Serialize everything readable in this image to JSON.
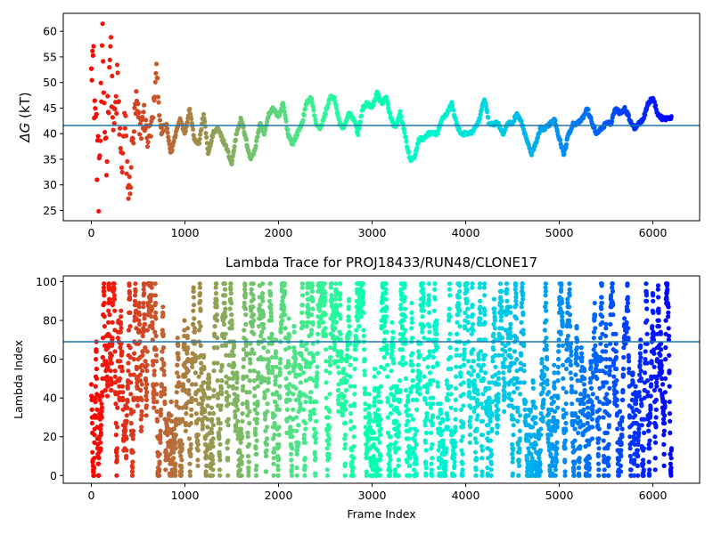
{
  "chart_data": [
    {
      "id": "free-energy",
      "type": "scatter",
      "title": "",
      "xlabel": "",
      "ylabel_main": "ΔG",
      "ylabel_unit": " (kT)",
      "xlim": [
        -300,
        6500
      ],
      "ylim": [
        23,
        63.5
      ],
      "xticks": [
        0,
        1000,
        2000,
        3000,
        4000,
        5000,
        6000
      ],
      "yticks": [
        25,
        30,
        35,
        40,
        45,
        50,
        55,
        60
      ],
      "hline": 41.6,
      "hline_color": "#1f77b4",
      "colormap": "rainbow",
      "trace": [
        [
          0,
          60
        ],
        [
          40,
          45
        ],
        [
          80,
          30
        ],
        [
          120,
          55
        ],
        [
          160,
          35
        ],
        [
          200,
          58
        ],
        [
          240,
          40
        ],
        [
          280,
          50
        ],
        [
          320,
          33
        ],
        [
          360,
          42
        ],
        [
          400,
          27
        ],
        [
          440,
          38
        ],
        [
          480,
          46
        ],
        [
          520,
          40
        ],
        [
          560,
          44
        ],
        [
          600,
          39
        ],
        [
          650,
          42
        ],
        [
          700,
          53
        ],
        [
          740,
          40
        ],
        [
          800,
          42
        ],
        [
          850,
          36
        ],
        [
          900,
          40
        ],
        [
          950,
          43
        ],
        [
          1000,
          40
        ],
        [
          1050,
          45
        ],
        [
          1100,
          39
        ],
        [
          1150,
          38
        ],
        [
          1200,
          44
        ],
        [
          1250,
          36
        ],
        [
          1300,
          40
        ],
        [
          1350,
          41
        ],
        [
          1400,
          39
        ],
        [
          1450,
          37
        ],
        [
          1500,
          34
        ],
        [
          1550,
          40
        ],
        [
          1600,
          43
        ],
        [
          1650,
          39
        ],
        [
          1700,
          35
        ],
        [
          1750,
          37
        ],
        [
          1800,
          42
        ],
        [
          1850,
          40
        ],
        [
          1900,
          44
        ],
        [
          1950,
          45
        ],
        [
          2000,
          43
        ],
        [
          2050,
          46
        ],
        [
          2100,
          40
        ],
        [
          2150,
          38
        ],
        [
          2200,
          40
        ],
        [
          2250,
          42
        ],
        [
          2300,
          46
        ],
        [
          2350,
          47
        ],
        [
          2400,
          42
        ],
        [
          2450,
          41
        ],
        [
          2500,
          44
        ],
        [
          2550,
          47
        ],
        [
          2600,
          47
        ],
        [
          2650,
          42
        ],
        [
          2700,
          41
        ],
        [
          2750,
          44
        ],
        [
          2800,
          43
        ],
        [
          2850,
          40
        ],
        [
          2900,
          45
        ],
        [
          2950,
          46
        ],
        [
          3000,
          45
        ],
        [
          3050,
          48
        ],
        [
          3100,
          46
        ],
        [
          3150,
          47
        ],
        [
          3200,
          43
        ],
        [
          3250,
          41
        ],
        [
          3300,
          44
        ],
        [
          3350,
          40
        ],
        [
          3400,
          35
        ],
        [
          3450,
          35
        ],
        [
          3500,
          39
        ],
        [
          3550,
          39
        ],
        [
          3600,
          40
        ],
        [
          3650,
          40
        ],
        [
          3700,
          40
        ],
        [
          3750,
          43
        ],
        [
          3800,
          44
        ],
        [
          3850,
          46
        ],
        [
          3900,
          42
        ],
        [
          3950,
          40
        ],
        [
          4000,
          40
        ],
        [
          4050,
          40
        ],
        [
          4100,
          41
        ],
        [
          4150,
          43
        ],
        [
          4200,
          47
        ],
        [
          4250,
          42
        ],
        [
          4300,
          42
        ],
        [
          4350,
          42
        ],
        [
          4400,
          40
        ],
        [
          4450,
          42
        ],
        [
          4500,
          42
        ],
        [
          4550,
          44
        ],
        [
          4600,
          42
        ],
        [
          4650,
          39
        ],
        [
          4700,
          36
        ],
        [
          4750,
          38
        ],
        [
          4800,
          41
        ],
        [
          4850,
          41
        ],
        [
          4900,
          42
        ],
        [
          4950,
          43
        ],
        [
          5000,
          39
        ],
        [
          5050,
          36
        ],
        [
          5100,
          40
        ],
        [
          5150,
          42
        ],
        [
          5200,
          42
        ],
        [
          5250,
          43
        ],
        [
          5300,
          45
        ],
        [
          5350,
          42
        ],
        [
          5400,
          40
        ],
        [
          5450,
          41
        ],
        [
          5500,
          42
        ],
        [
          5550,
          42
        ],
        [
          5600,
          45
        ],
        [
          5650,
          44
        ],
        [
          5700,
          45
        ],
        [
          5750,
          43
        ],
        [
          5800,
          41
        ],
        [
          5850,
          42
        ],
        [
          5900,
          43
        ],
        [
          5950,
          46
        ],
        [
          6000,
          47
        ],
        [
          6050,
          44
        ],
        [
          6100,
          43
        ],
        [
          6150,
          43
        ],
        [
          6200,
          43
        ]
      ],
      "noise": 1.2
    },
    {
      "id": "lambda-trace",
      "type": "scatter",
      "title": "Lambda Trace for PROJ18433/RUN48/CLONE17",
      "xlabel": "Frame Index",
      "ylabel": "Lambda Index",
      "xlim": [
        -300,
        6500
      ],
      "ylim": [
        -4,
        103
      ],
      "xticks": [
        0,
        1000,
        2000,
        3000,
        4000,
        5000,
        6000
      ],
      "yticks": [
        0,
        20,
        40,
        60,
        80,
        100
      ],
      "hline": 69,
      "hline_color": "#1f77b4",
      "colormap": "rainbow",
      "n_points": 4200,
      "x_max": 6200,
      "value_range": [
        0,
        99
      ]
    }
  ]
}
